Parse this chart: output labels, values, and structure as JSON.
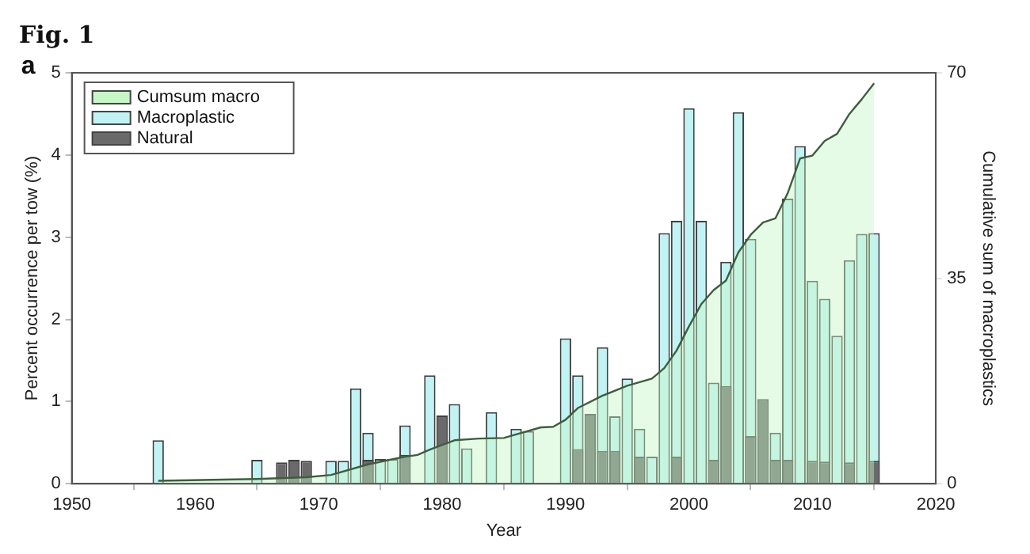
{
  "chart_data": {
    "type": "bar",
    "title": "Fig. 1",
    "xlabel": "Year",
    "ylabel": "Percent occurrence per tow (%)",
    "y2label": "Cumulative sum of macroplastics",
    "annotations": [
      "a"
    ],
    "xlim": [
      1950,
      2020
    ],
    "xticks": [
      1950,
      1960,
      1970,
      1980,
      1990,
      2000,
      2010,
      2020
    ],
    "ylim": [
      0,
      5
    ],
    "yticks": [
      0,
      1,
      2,
      3,
      4,
      5
    ],
    "y2lim": [
      0,
      70
    ],
    "y2ticks": [
      0,
      35,
      70
    ],
    "grid": false,
    "legend": "top left",
    "series": [
      {
        "name": "Cumsum macro",
        "type": "area",
        "axis": "y2",
        "color": "#c6f5c6",
        "x": [
          1957,
          1965,
          1969,
          1971,
          1974,
          1977,
          1978,
          1979,
          1981,
          1983,
          1985,
          1986,
          1988,
          1989,
          1990,
          1991,
          1993,
          1995,
          1997,
          1998,
          1999,
          2000,
          2001,
          2002,
          2003,
          2004,
          2005,
          2006,
          2007,
          2008,
          2009,
          2010,
          2011,
          2012,
          2013,
          2014,
          2015
        ],
        "values": [
          0.5,
          0.8,
          1.1,
          1.5,
          3.3,
          4.6,
          4.9,
          5.8,
          7.4,
          7.7,
          7.8,
          8.4,
          9.6,
          9.7,
          10.9,
          12.9,
          15.0,
          16.7,
          17.9,
          19.7,
          22.7,
          26.8,
          30.6,
          33,
          34.6,
          39.4,
          42.4,
          44.5,
          45.2,
          49.5,
          55.4,
          55.9,
          58.4,
          59.6,
          63.0,
          65.5,
          68.2
        ]
      },
      {
        "name": "Macroplastic",
        "color": "#c0f4f4",
        "x": [
          1957,
          1965,
          1971,
          1972,
          1973,
          1974,
          1975,
          1976,
          1977,
          1979,
          1981,
          1982,
          1984,
          1986,
          1987,
          1990,
          1991,
          1993,
          1994,
          1995,
          1996,
          1997,
          1998,
          1999,
          2000,
          2001,
          2002,
          2003,
          2004,
          2005,
          2007,
          2008,
          2009,
          2010,
          2011,
          2012,
          2013,
          2014,
          2015
        ],
        "values": [
          0.53,
          0.29,
          0.28,
          0.28,
          1.16,
          0.62,
          0.3,
          0.3,
          0.71,
          1.32,
          0.97,
          0.43,
          0.87,
          0.67,
          0.64,
          1.77,
          1.32,
          1.66,
          0.82,
          1.28,
          0.67,
          0.33,
          3.05,
          3.2,
          4.57,
          3.2,
          1.23,
          2.7,
          4.52,
          2.98,
          0.62,
          3.47,
          4.11,
          2.47,
          2.25,
          1.8,
          2.72,
          3.04,
          3.05
        ]
      },
      {
        "name": "Natural",
        "color": "#6a6a6a",
        "x": [
          1967,
          1968,
          1969,
          1974,
          1977,
          1980,
          1991,
          1992,
          1993,
          1994,
          1996,
          1999,
          2002,
          2003,
          2005,
          2006,
          2007,
          2008,
          2010,
          2011,
          2013,
          2015
        ],
        "values": [
          0.26,
          0.29,
          0.28,
          0.29,
          0.35,
          0.83,
          0.42,
          0.85,
          0.4,
          0.4,
          0.33,
          0.33,
          0.29,
          1.19,
          0.58,
          1.03,
          0.29,
          0.29,
          0.28,
          0.27,
          0.26,
          0.28
        ]
      }
    ]
  }
}
